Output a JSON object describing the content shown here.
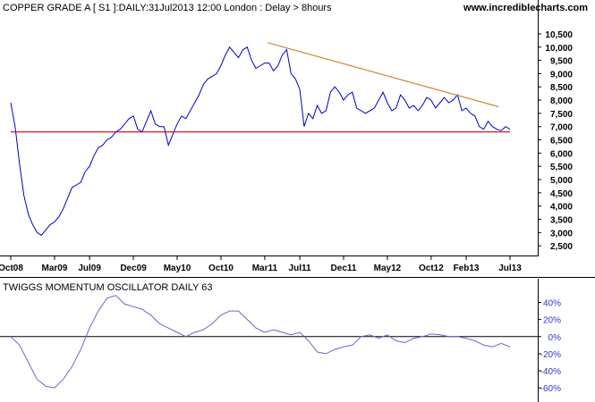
{
  "site": "www.incrediblecharts.com",
  "chart_data": [
    {
      "type": "line",
      "title": "COPPER GRADE A [ S1 ]:DAILY:31Jul2013 12:00 London : Delay > 8hours",
      "ylim": [
        2000,
        10700
      ],
      "y_ticks": [
        "10,500",
        "10,000",
        "9,500",
        "9,000",
        "8,500",
        "8,000",
        "7,500",
        "7,000",
        "6,500",
        "6,000",
        "5,500",
        "5,000",
        "4,500",
        "4,000",
        "3,500",
        "3,000",
        "2,500"
      ],
      "y_tick_values": [
        10500,
        10000,
        9500,
        9000,
        8500,
        8000,
        7500,
        7000,
        6500,
        6000,
        5500,
        5000,
        4500,
        4000,
        3500,
        3000,
        2500
      ],
      "x_ticks": [
        "Oct08",
        "Mar09",
        "Jul09",
        "Dec09",
        "May10",
        "Oct10",
        "Mar11",
        "Jul11",
        "Dec11",
        "May12",
        "Oct12",
        "Feb13",
        "Jul13"
      ],
      "x_tick_positions": [
        0,
        5,
        9,
        14,
        19,
        24,
        29,
        33,
        38,
        43,
        48,
        52,
        57
      ],
      "grid": false,
      "series": [
        {
          "color": "#0000cc",
          "x": [
            0,
            0.5,
            1,
            1.5,
            2,
            2.5,
            3,
            3.5,
            4,
            4.5,
            5,
            5.5,
            6,
            6.5,
            7,
            7.5,
            8,
            8.5,
            9,
            9.5,
            10,
            10.5,
            11,
            11.5,
            12,
            12.5,
            13,
            13.5,
            14,
            14.5,
            15,
            15.5,
            16,
            16.5,
            17,
            17.5,
            18,
            18.5,
            19,
            19.5,
            20,
            20.5,
            21,
            21.5,
            22,
            22.5,
            23,
            23.5,
            24,
            24.5,
            25,
            25.5,
            26,
            26.5,
            27,
            27.5,
            28,
            28.5,
            29,
            29.5,
            30,
            30.5,
            31,
            31.5,
            32,
            32.5,
            33,
            33.5,
            34,
            34.5,
            35,
            35.5,
            36,
            36.5,
            37,
            37.5,
            38,
            38.5,
            39,
            39.5,
            40,
            40.5,
            41,
            41.5,
            42,
            42.5,
            43,
            43.5,
            44,
            44.5,
            45,
            45.5,
            46,
            46.5,
            47,
            47.5,
            48,
            48.5,
            49,
            49.5,
            50,
            50.5,
            51,
            51.5,
            52,
            52.5,
            53,
            53.5,
            54,
            54.5,
            55,
            55.5,
            56,
            56.5,
            57
          ],
          "y": [
            7900,
            7000,
            5600,
            4400,
            3700,
            3300,
            3000,
            2900,
            3100,
            3300,
            3400,
            3600,
            3900,
            4300,
            4700,
            4800,
            4900,
            5300,
            5500,
            5900,
            6200,
            6300,
            6500,
            6600,
            6800,
            6900,
            7100,
            7300,
            7400,
            6900,
            6800,
            7200,
            7600,
            7100,
            7000,
            7000,
            6300,
            6700,
            7100,
            7400,
            7300,
            7600,
            7900,
            8200,
            8600,
            8800,
            8900,
            9000,
            9300,
            9700,
            10000,
            9800,
            9600,
            9900,
            10000,
            9500,
            9200,
            9300,
            9400,
            9400,
            9100,
            9300,
            9700,
            9900,
            9000,
            8800,
            8400,
            7000,
            7500,
            7300,
            7800,
            7500,
            7600,
            8300,
            8500,
            8300,
            8000,
            8200,
            8300,
            7700,
            7600,
            7500,
            7600,
            7700,
            8000,
            8300,
            7900,
            7600,
            7700,
            8200,
            8000,
            7700,
            7800,
            7600,
            7800,
            8100,
            8000,
            7700,
            7900,
            8100,
            7900,
            8000,
            8200,
            7600,
            7700,
            7500,
            7400,
            7000,
            6900,
            7200,
            7000,
            6900,
            6850,
            7000,
            6900
          ]
        },
        {
          "color": "#cc0000",
          "x": [
            0,
            57
          ],
          "y": [
            6800,
            6800
          ]
        },
        {
          "color": "#cc8833",
          "x": [
            29.3,
            55.7
          ],
          "y": [
            10170,
            7750
          ]
        }
      ]
    },
    {
      "type": "line",
      "title": "TWIGGS MOMENTUM OSCILLATOR DAILY 63",
      "ylim": [
        -0.64,
        0.52
      ],
      "y_ticks": [
        "40%",
        "20%",
        "0%",
        "-20%",
        "-40%",
        "-60%"
      ],
      "y_tick_values": [
        0.4,
        0.2,
        0,
        -0.2,
        -0.4,
        -0.6
      ],
      "grid": false,
      "series": [
        {
          "color": "#6666cc",
          "x": [
            0,
            1,
            2,
            3,
            4,
            5,
            6,
            7,
            8,
            9,
            10,
            11,
            12,
            13,
            14,
            15,
            16,
            17,
            18,
            19,
            20,
            21,
            22,
            23,
            24,
            25,
            26,
            27,
            28,
            29,
            30,
            31,
            32,
            33,
            34,
            35,
            36,
            37,
            38,
            39,
            40,
            41,
            42,
            43,
            44,
            45,
            46,
            47,
            48,
            49,
            50,
            51,
            52,
            53,
            54,
            55,
            56,
            57
          ],
          "y": [
            0,
            -0.1,
            -0.3,
            -0.5,
            -0.58,
            -0.6,
            -0.5,
            -0.35,
            -0.15,
            0.1,
            0.3,
            0.45,
            0.48,
            0.38,
            0.35,
            0.32,
            0.25,
            0.15,
            0.1,
            0.05,
            0,
            0.05,
            0.08,
            0.15,
            0.25,
            0.3,
            0.3,
            0.2,
            0.1,
            0.05,
            0.08,
            0.05,
            0.02,
            0.05,
            -0.05,
            -0.18,
            -0.2,
            -0.15,
            -0.12,
            -0.1,
            0,
            0.02,
            -0.02,
            0.02,
            -0.05,
            -0.07,
            -0.02,
            0,
            0.03,
            0.02,
            0,
            0,
            -0.02,
            -0.05,
            -0.1,
            -0.12,
            -0.08,
            -0.12
          ]
        },
        {
          "color": "#000000",
          "x": [
            0,
            57
          ],
          "y": [
            0,
            0
          ]
        }
      ]
    }
  ]
}
